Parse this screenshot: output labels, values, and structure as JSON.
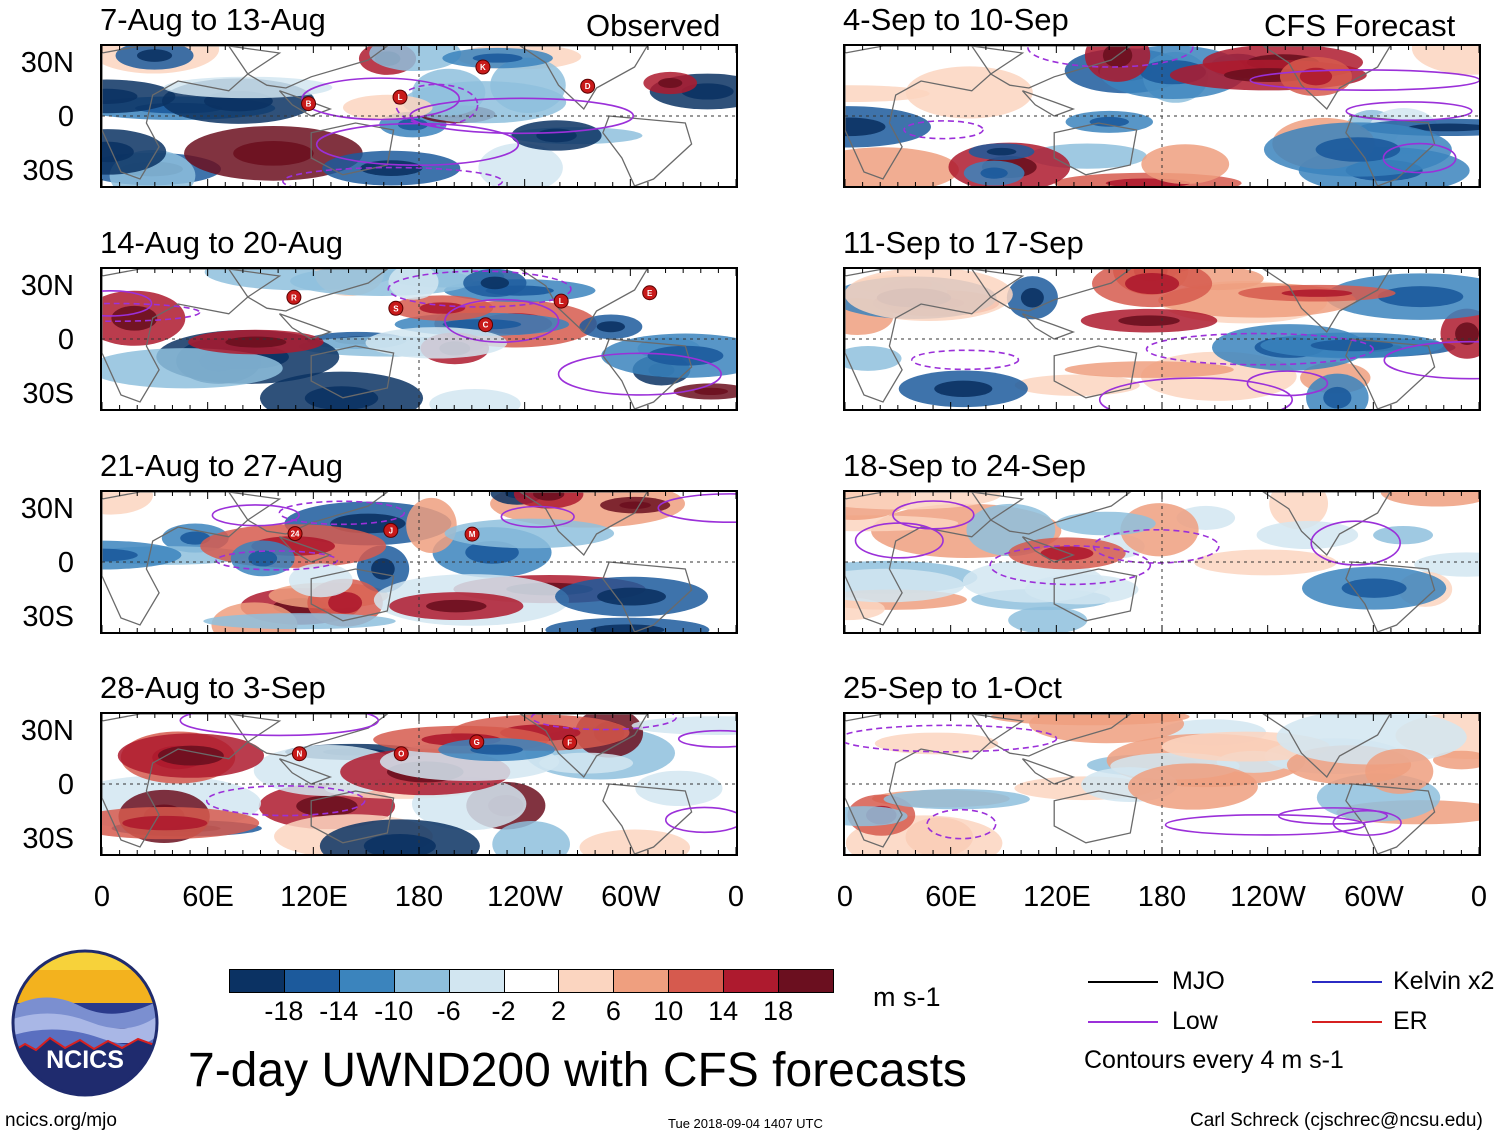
{
  "chart_data": {
    "type": "heatmap",
    "title": "7-day UWND200 with CFS forecasts",
    "variable": "UWND200",
    "units": "m s-1",
    "contour_interval_note": "Contours every 4 m s-1",
    "columns": [
      {
        "label": "Observed",
        "panels": [
          {
            "title": "7-Aug to 13-Aug",
            "storms": [
              "B",
              "L",
              "K",
              "D"
            ]
          },
          {
            "title": "14-Aug to 20-Aug",
            "storms": [
              "R",
              "S",
              "C",
              "L",
              "E"
            ]
          },
          {
            "title": "21-Aug to 27-Aug",
            "storms": [
              "24",
              "J",
              "M"
            ]
          },
          {
            "title": "28-Aug to 3-Sep",
            "storms": [
              "N",
              "O",
              "G",
              "F"
            ]
          }
        ]
      },
      {
        "label": "CFS Forecast",
        "panels": [
          {
            "title": "4-Sep to 10-Sep",
            "storms": []
          },
          {
            "title": "11-Sep to 17-Sep",
            "storms": []
          },
          {
            "title": "18-Sep to 24-Sep",
            "storms": []
          },
          {
            "title": "25-Sep to 1-Oct",
            "storms": []
          }
        ]
      }
    ],
    "y_ticks": [
      "30N",
      "0",
      "30S"
    ],
    "x_ticks": [
      "0",
      "60E",
      "120E",
      "180",
      "120W",
      "60W",
      "0"
    ],
    "colorbar": {
      "levels": [
        "-18",
        "-14",
        "-10",
        "-6",
        "-2",
        "2",
        "6",
        "10",
        "14",
        "18"
      ],
      "colors": [
        "#0b3263",
        "#1c5a9c",
        "#3b84bd",
        "#8ebfdd",
        "#d2e6f1",
        "#ffffff",
        "#fbd5c0",
        "#ef9f7f",
        "#d65a4e",
        "#ae1a2e",
        "#6b0f1f"
      ]
    },
    "legend": [
      {
        "label": "MJO",
        "color": "#000000"
      },
      {
        "label": "Kelvin x2",
        "color": "#2b2bc4"
      },
      {
        "label": "Low",
        "color": "#9b30d9"
      },
      {
        "label": "ER",
        "color": "#d62020"
      }
    ]
  },
  "footer": {
    "logo_text": "NCICS",
    "url": "ncics.org/mjo",
    "timestamp": "Tue 2018-09-04 1407 UTC",
    "credit": "Carl Schreck (cjschrec@ncsu.edu)"
  }
}
